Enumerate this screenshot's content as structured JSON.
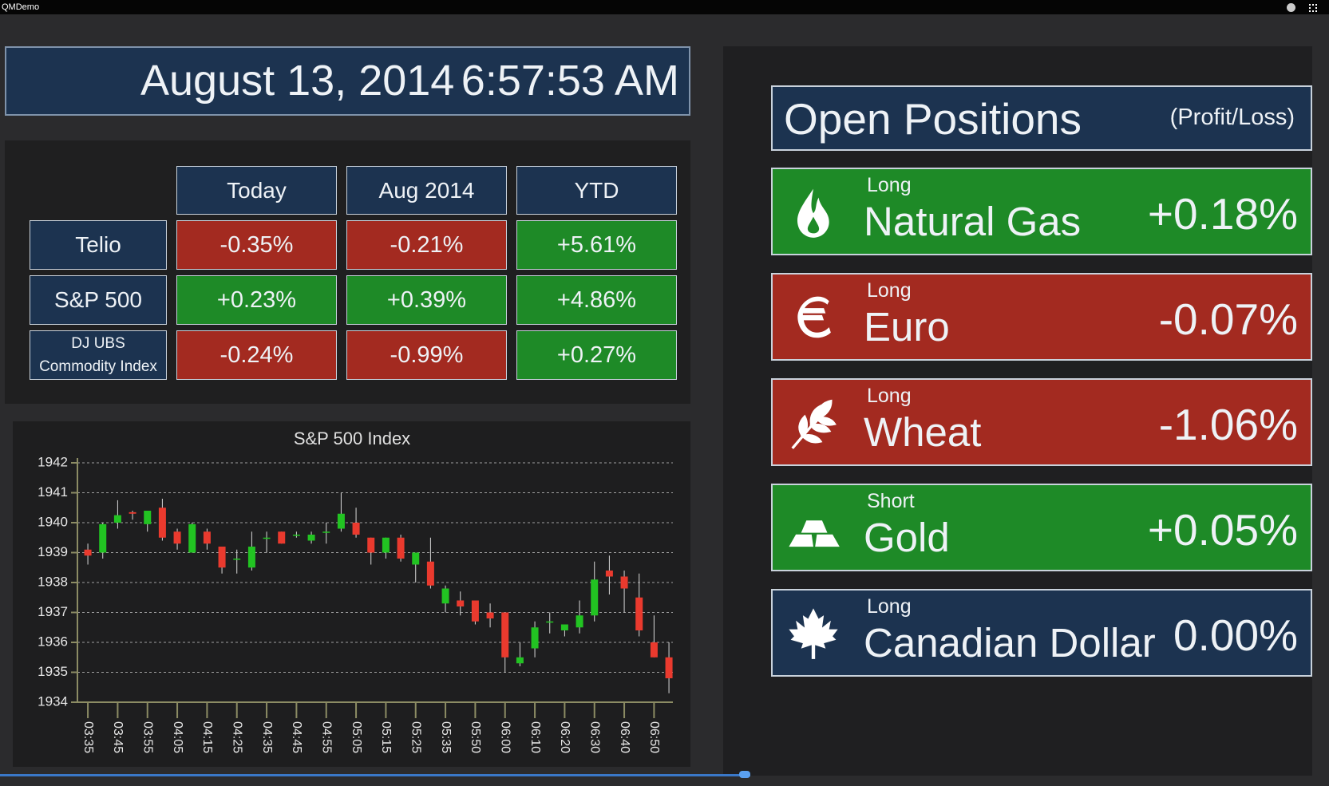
{
  "window_title": "QMDemo",
  "header": {
    "date": "August 13, 2014",
    "time": "6:57:53 AM"
  },
  "performance": {
    "columns": [
      "Today",
      "Aug 2014",
      "YTD"
    ],
    "rows": [
      {
        "name": "Telio",
        "values": [
          "-0.35%",
          "-0.21%",
          "+5.61%"
        ]
      },
      {
        "name": "S&P 500",
        "values": [
          "+0.23%",
          "+0.39%",
          "+4.86%"
        ]
      },
      {
        "name": "DJ UBS Commodity Index",
        "values": [
          "-0.24%",
          "-0.99%",
          "+0.27%"
        ]
      }
    ]
  },
  "positions": {
    "title": "Open Positions",
    "subtitle": "(Profit/Loss)",
    "items": [
      {
        "side": "Long",
        "name": "Natural Gas",
        "value": "+0.18%",
        "color": "#1e8a27"
      },
      {
        "side": "Long",
        "name": "Euro",
        "value": "-0.07%",
        "color": "#a32a20"
      },
      {
        "side": "Long",
        "name": "Wheat",
        "value": "-1.06%",
        "color": "#a32a20"
      },
      {
        "side": "Short",
        "name": "Gold",
        "value": "+0.05%",
        "color": "#1e8a27"
      },
      {
        "side": "Long",
        "name": "Canadian Dollar",
        "value": "0.00%",
        "color": "#1c3350"
      }
    ]
  },
  "chart_data": {
    "type": "candlestick",
    "title": "S&P 500 Index",
    "categories": [
      "03:35",
      null,
      "03:45",
      null,
      "03:55",
      null,
      "04:05",
      null,
      "04:15",
      null,
      "04:25",
      null,
      "04:35",
      null,
      "04:45",
      null,
      "04:55",
      null,
      "05:05",
      null,
      "05:15",
      null,
      "05:25",
      null,
      "05:35",
      null,
      "05:50",
      null,
      "06:00",
      null,
      "06:10",
      null,
      "06:20",
      null,
      "06:30",
      null,
      "06:40",
      null,
      "06:50",
      null
    ],
    "open": [
      1939.1,
      1939.0,
      1940.0,
      1940.35,
      1939.95,
      1940.5,
      1939.7,
      1939.0,
      1939.7,
      1939.2,
      1938.8,
      1938.5,
      1939.5,
      1939.7,
      1939.6,
      1939.4,
      1939.7,
      1939.8,
      1940.0,
      1939.5,
      1939.0,
      1939.5,
      1938.6,
      1938.7,
      1937.3,
      1937.4,
      1937.4,
      1937.0,
      1937.0,
      1935.3,
      1935.8,
      1936.7,
      1936.4,
      1936.5,
      1936.9,
      1938.4,
      1938.2,
      1937.5,
      1936.0,
      1935.5
    ],
    "high": [
      1939.3,
      1940.0,
      1940.75,
      1940.4,
      1940.4,
      1940.8,
      1939.8,
      1940.0,
      1939.8,
      1939.2,
      1939.1,
      1939.7,
      1939.7,
      1939.7,
      1939.7,
      1939.7,
      1940.0,
      1941.0,
      1940.5,
      1939.5,
      1939.5,
      1939.6,
      1939.0,
      1939.5,
      1937.9,
      1937.7,
      1937.4,
      1937.3,
      1937.0,
      1936.0,
      1936.7,
      1937.0,
      1936.6,
      1937.4,
      1938.7,
      1938.9,
      1938.4,
      1938.3,
      1936.9,
      1936.0
    ],
    "low": [
      1938.6,
      1938.8,
      1939.8,
      1940.1,
      1939.7,
      1939.4,
      1939.1,
      1939.0,
      1939.1,
      1938.3,
      1938.3,
      1938.4,
      1939.0,
      1939.3,
      1939.5,
      1939.3,
      1939.3,
      1939.7,
      1939.5,
      1938.6,
      1938.8,
      1938.7,
      1938.0,
      1937.8,
      1937.0,
      1936.9,
      1936.6,
      1936.5,
      1935.0,
      1935.2,
      1935.5,
      1936.3,
      1936.2,
      1936.3,
      1936.7,
      1937.6,
      1937.0,
      1936.2,
      1935.5,
      1934.3
    ],
    "close": [
      1938.9,
      1939.95,
      1940.25,
      1940.3,
      1940.4,
      1939.5,
      1939.3,
      1939.95,
      1939.3,
      1938.5,
      1938.8,
      1939.2,
      1939.5,
      1939.3,
      1939.6,
      1939.6,
      1939.7,
      1940.3,
      1939.6,
      1939.0,
      1939.5,
      1938.8,
      1939.0,
      1937.9,
      1937.8,
      1937.2,
      1936.7,
      1936.8,
      1935.5,
      1935.5,
      1936.5,
      1936.7,
      1936.6,
      1936.9,
      1938.1,
      1938.2,
      1937.8,
      1936.4,
      1935.5,
      1934.8
    ],
    "up_color": "#22c322",
    "down_color": "#ea3a2e",
    "ylim": [
      1934,
      1942
    ],
    "yticks": [
      1934,
      1935,
      1936,
      1937,
      1938,
      1939,
      1940,
      1941,
      1942
    ],
    "grid": true
  }
}
